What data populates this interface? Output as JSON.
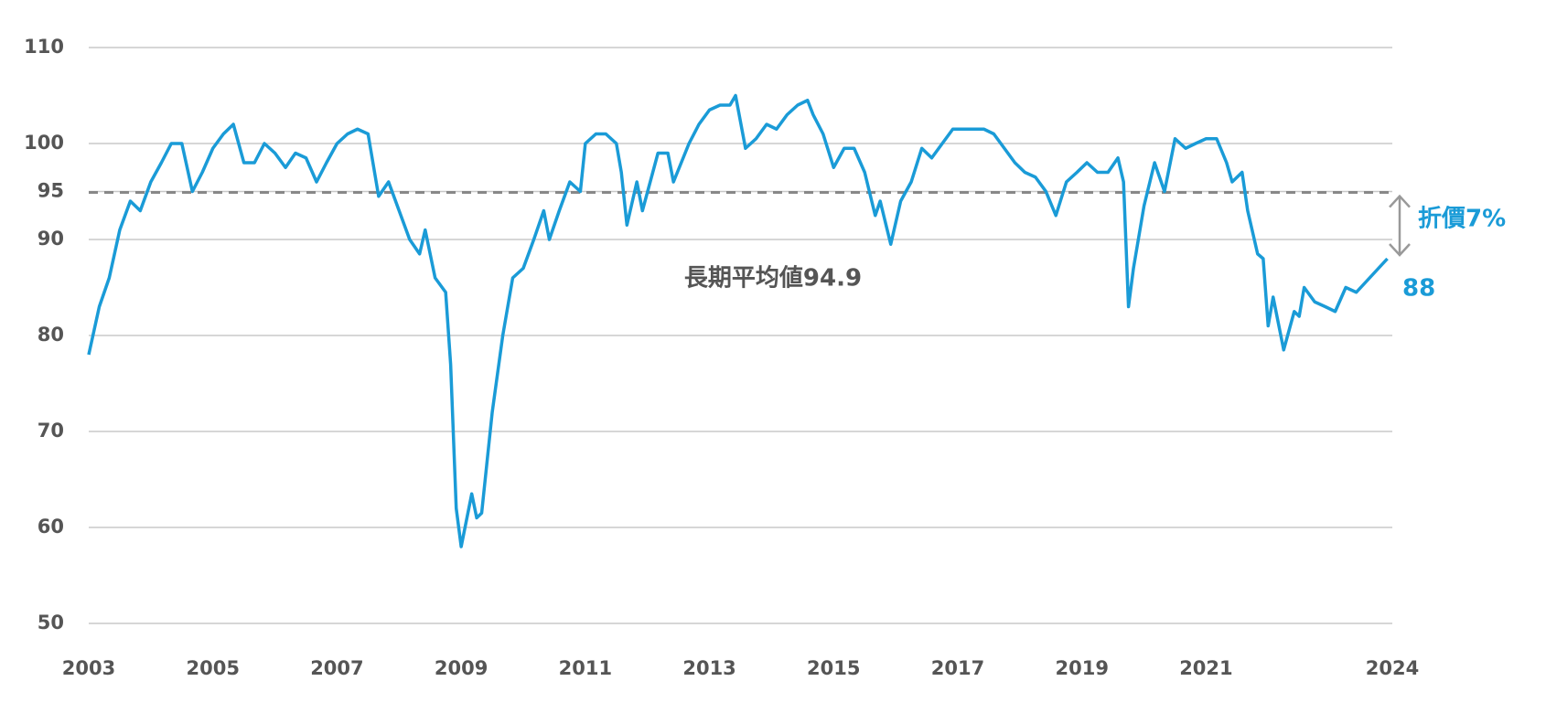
{
  "chart_data": {
    "type": "line",
    "xlim": [
      2003,
      2024
    ],
    "xticks": [
      2003,
      2005,
      2007,
      2009,
      2011,
      2013,
      2015,
      2017,
      2019,
      2021,
      2024
    ],
    "ylim": [
      50,
      110
    ],
    "yticks": [
      50,
      60,
      70,
      80,
      90,
      95,
      100,
      110
    ],
    "grid": true,
    "series": [
      {
        "color": "#1a9bd7",
        "x": [
          2003.0,
          2003.17,
          2003.33,
          2003.5,
          2003.67,
          2003.83,
          2004.0,
          2004.17,
          2004.33,
          2004.5,
          2004.67,
          2004.83,
          2005.0,
          2005.17,
          2005.33,
          2005.5,
          2005.67,
          2005.83,
          2006.0,
          2006.17,
          2006.33,
          2006.5,
          2006.67,
          2006.83,
          2007.0,
          2007.17,
          2007.33,
          2007.5,
          2007.67,
          2007.83,
          2008.0,
          2008.17,
          2008.33,
          2008.42,
          2008.58,
          2008.75,
          2008.83,
          2008.92,
          2009.0,
          2009.17,
          2009.25,
          2009.33,
          2009.5,
          2009.67,
          2009.83,
          2010.0,
          2010.17,
          2010.33,
          2010.42,
          2010.58,
          2010.75,
          2010.92,
          2011.0,
          2011.17,
          2011.33,
          2011.5,
          2011.58,
          2011.67,
          2011.83,
          2011.92,
          2012.17,
          2012.33,
          2012.42,
          2012.67,
          2012.83,
          2013.0,
          2013.17,
          2013.33,
          2013.42,
          2013.58,
          2013.75,
          2013.92,
          2014.08,
          2014.25,
          2014.42,
          2014.58,
          2014.67,
          2014.83,
          2015.0,
          2015.17,
          2015.33,
          2015.5,
          2015.67,
          2015.75,
          2015.92,
          2016.08,
          2016.25,
          2016.42,
          2016.58,
          2016.75,
          2016.92,
          2017.08,
          2017.25,
          2017.42,
          2017.58,
          2017.75,
          2017.92,
          2018.08,
          2018.25,
          2018.42,
          2018.58,
          2018.75,
          2018.92,
          2019.08,
          2019.25,
          2019.42,
          2019.58,
          2019.67,
          2019.75,
          2019.83,
          2020.0,
          2020.17,
          2020.33,
          2020.5,
          2020.67,
          2020.83,
          2021.0,
          2021.17,
          2021.33,
          2021.42,
          2021.58,
          2021.67,
          2021.83,
          2021.92,
          2022.0,
          2022.08,
          2022.25,
          2022.42,
          2022.5,
          2022.58,
          2022.75,
          2022.92,
          2023.08,
          2023.25,
          2023.42,
          2023.92
        ],
        "values": [
          78,
          83,
          86,
          91,
          94,
          93,
          96,
          98,
          100,
          100,
          95,
          97,
          99.5,
          101,
          102,
          98,
          98,
          100,
          99,
          97.5,
          99,
          98.5,
          96,
          98,
          100,
          101,
          101.5,
          101,
          94.5,
          96,
          93,
          90,
          88.5,
          91,
          86,
          84.5,
          77,
          62,
          58,
          63.5,
          61,
          61.5,
          72,
          80,
          86,
          87,
          90,
          93,
          90,
          93,
          96,
          95,
          100,
          101,
          101,
          100,
          97,
          91.5,
          96,
          93,
          99,
          99,
          96,
          100,
          102,
          103.5,
          104,
          104,
          105,
          99.5,
          100.5,
          102,
          101.5,
          103,
          104,
          104.5,
          103,
          101,
          97.5,
          99.5,
          99.5,
          97,
          92.5,
          94,
          89.5,
          94,
          96,
          99.5,
          98.5,
          100,
          101.5,
          101.5,
          101.5,
          101.5,
          101,
          99.5,
          98,
          97,
          96.5,
          95,
          92.5,
          96,
          97,
          98,
          97,
          97,
          98.5,
          96,
          83,
          87,
          93.5,
          98,
          95,
          100.5,
          99.5,
          100,
          100.5,
          100.5,
          98,
          96,
          97,
          93,
          88.5,
          88,
          81,
          84,
          78.5,
          82.5,
          82,
          85,
          83.5,
          83,
          82.5,
          85,
          84.5,
          88
        ]
      }
    ],
    "reference_line": {
      "value": 94.9,
      "label": "長期平均値94.9"
    },
    "discount_label": "折價7%"
  }
}
